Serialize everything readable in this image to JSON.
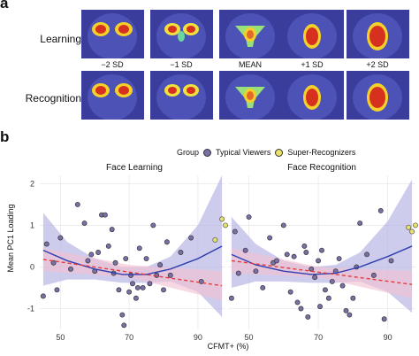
{
  "panels": {
    "a": "a",
    "b": "b"
  },
  "heatmaps": {
    "rows": [
      "Learning",
      "Recognition"
    ],
    "columns": [
      "−2 SD",
      "−1 SD",
      "MEAN",
      "+1 SD",
      "+2 SD"
    ]
  },
  "legend": {
    "title": "Group",
    "items": [
      {
        "label": "Typical Viewers",
        "color": "#7b6fa8"
      },
      {
        "label": "Super-Recognizers",
        "color": "#e9e26a"
      }
    ]
  },
  "colors": {
    "quadratic_fit": "#2f3fb0",
    "linear_fit": "#e83a3a",
    "quadratic_band": "#b9b7e6",
    "linear_band": "#f4bfd0"
  },
  "chart_data": [
    {
      "type": "scatter",
      "title": "Face Learning",
      "xlabel": "CFMT+ (%)",
      "ylabel": "Mean PC1 Loading",
      "xlim": [
        44,
        98
      ],
      "ylim": [
        -1.5,
        2.2
      ],
      "x_ticks": [
        50,
        70,
        90
      ],
      "y_ticks": [
        -1,
        0,
        1,
        2
      ],
      "grid": true,
      "typical": [
        [
          45,
          -0.7
        ],
        [
          46,
          0.55
        ],
        [
          48,
          0.1
        ],
        [
          49,
          -0.55
        ],
        [
          50,
          0.7
        ],
        [
          53,
          -0.05
        ],
        [
          55,
          1.5
        ],
        [
          57,
          1.05
        ],
        [
          58,
          0.15
        ],
        [
          59,
          0.3
        ],
        [
          60,
          -0.1
        ],
        [
          61,
          0.35
        ],
        [
          62,
          1.25
        ],
        [
          63,
          1.25
        ],
        [
          64,
          0.5
        ],
        [
          65,
          0.9
        ],
        [
          65.5,
          -0.15
        ],
        [
          66,
          0.1
        ],
        [
          67,
          -0.55
        ],
        [
          68,
          -1.15
        ],
        [
          68.5,
          -1.4
        ],
        [
          69,
          0.2
        ],
        [
          70,
          -0.6
        ],
        [
          70.5,
          -0.2
        ],
        [
          71,
          -0.4
        ],
        [
          72,
          -0.75
        ],
        [
          72.5,
          -0.5
        ],
        [
          73,
          0.45
        ],
        [
          74,
          -0.5
        ],
        [
          75,
          0.2
        ],
        [
          76,
          -0.4
        ],
        [
          77,
          1.0
        ],
        [
          78,
          -0.2
        ],
        [
          79,
          0.05
        ],
        [
          80,
          -0.55
        ],
        [
          81,
          0.6
        ],
        [
          82,
          -0.2
        ],
        [
          85,
          0.35
        ],
        [
          88,
          0.7
        ],
        [
          91,
          -0.35
        ]
      ],
      "super": [
        [
          95,
          0.65
        ],
        [
          97,
          1.15
        ],
        [
          98,
          1.0
        ]
      ],
      "quadratic_fit": [
        [
          45,
          0.4
        ],
        [
          52,
          0.15
        ],
        [
          60,
          -0.05
        ],
        [
          68,
          -0.18
        ],
        [
          75,
          -0.18
        ],
        [
          82,
          -0.05
        ],
        [
          90,
          0.2
        ],
        [
          97,
          0.5
        ]
      ],
      "quadratic_band_upper": [
        [
          45,
          1.3
        ],
        [
          52,
          0.6
        ],
        [
          60,
          0.2
        ],
        [
          68,
          0.0
        ],
        [
          75,
          0.0
        ],
        [
          82,
          0.25
        ],
        [
          90,
          1.0
        ],
        [
          97,
          2.2
        ]
      ],
      "quadratic_band_lower": [
        [
          45,
          -0.45
        ],
        [
          52,
          -0.3
        ],
        [
          60,
          -0.3
        ],
        [
          68,
          -0.38
        ],
        [
          75,
          -0.38
        ],
        [
          82,
          -0.35
        ],
        [
          90,
          -0.6
        ],
        [
          97,
          -1.2
        ]
      ],
      "linear_fit": [
        [
          45,
          0.18
        ],
        [
          97,
          -0.45
        ]
      ],
      "linear_band_upper": [
        [
          45,
          0.45
        ],
        [
          70,
          0.05
        ],
        [
          97,
          -0.1
        ]
      ],
      "linear_band_lower": [
        [
          45,
          -0.1
        ],
        [
          70,
          -0.25
        ],
        [
          97,
          -0.8
        ]
      ]
    },
    {
      "type": "scatter",
      "title": "Face Recognition",
      "xlim": [
        44,
        98
      ],
      "ylim": [
        -1.5,
        2.2
      ],
      "x_ticks": [
        50,
        70,
        90
      ],
      "grid": true,
      "typical": [
        [
          45,
          -0.75
        ],
        [
          46,
          0.85
        ],
        [
          47,
          -0.15
        ],
        [
          49,
          0.4
        ],
        [
          50,
          1.2
        ],
        [
          52,
          -0.1
        ],
        [
          54,
          -0.5
        ],
        [
          56,
          0.7
        ],
        [
          57,
          0.1
        ],
        [
          58,
          0.15
        ],
        [
          60,
          1.0
        ],
        [
          61,
          0.3
        ],
        [
          62,
          -0.6
        ],
        [
          63,
          0.25
        ],
        [
          64,
          -0.85
        ],
        [
          65,
          -1.0
        ],
        [
          66,
          0.5
        ],
        [
          66.5,
          0.35
        ],
        [
          67,
          -1.2
        ],
        [
          68,
          -0.05
        ],
        [
          69,
          -0.25
        ],
        [
          70,
          0.15
        ],
        [
          70.5,
          -0.95
        ],
        [
          71,
          0.4
        ],
        [
          72,
          -0.55
        ],
        [
          73,
          -0.75
        ],
        [
          74,
          -0.35
        ],
        [
          75,
          -0.1
        ],
        [
          76,
          0.2
        ],
        [
          77,
          -0.45
        ],
        [
          78,
          -1.05
        ],
        [
          79,
          -1.15
        ],
        [
          80,
          -0.75
        ],
        [
          81,
          0.0
        ],
        [
          82,
          1.05
        ],
        [
          84,
          0.3
        ],
        [
          86,
          -0.2
        ],
        [
          88,
          1.35
        ],
        [
          89,
          -1.25
        ],
        [
          91,
          0.15
        ]
      ],
      "super": [
        [
          96,
          0.95
        ],
        [
          97,
          0.85
        ],
        [
          98,
          1.0
        ]
      ],
      "quadratic_fit": [
        [
          45,
          0.3
        ],
        [
          52,
          0.05
        ],
        [
          60,
          -0.1
        ],
        [
          68,
          -0.18
        ],
        [
          75,
          -0.15
        ],
        [
          82,
          0.0
        ],
        [
          90,
          0.25
        ],
        [
          97,
          0.5
        ]
      ],
      "quadratic_band_upper": [
        [
          45,
          1.2
        ],
        [
          52,
          0.55
        ],
        [
          60,
          0.15
        ],
        [
          68,
          0.0
        ],
        [
          75,
          0.05
        ],
        [
          82,
          0.35
        ],
        [
          90,
          1.1
        ],
        [
          97,
          2.1
        ]
      ],
      "quadratic_band_lower": [
        [
          45,
          -0.5
        ],
        [
          52,
          -0.35
        ],
        [
          60,
          -0.35
        ],
        [
          68,
          -0.38
        ],
        [
          75,
          -0.38
        ],
        [
          82,
          -0.35
        ],
        [
          90,
          -0.6
        ],
        [
          97,
          -1.1
        ]
      ],
      "linear_fit": [
        [
          45,
          0.15
        ],
        [
          97,
          -0.42
        ]
      ],
      "linear_band_upper": [
        [
          45,
          0.45
        ],
        [
          70,
          0.0
        ],
        [
          97,
          -0.1
        ]
      ],
      "linear_band_lower": [
        [
          45,
          -0.15
        ],
        [
          70,
          -0.25
        ],
        [
          97,
          -0.75
        ]
      ]
    }
  ]
}
